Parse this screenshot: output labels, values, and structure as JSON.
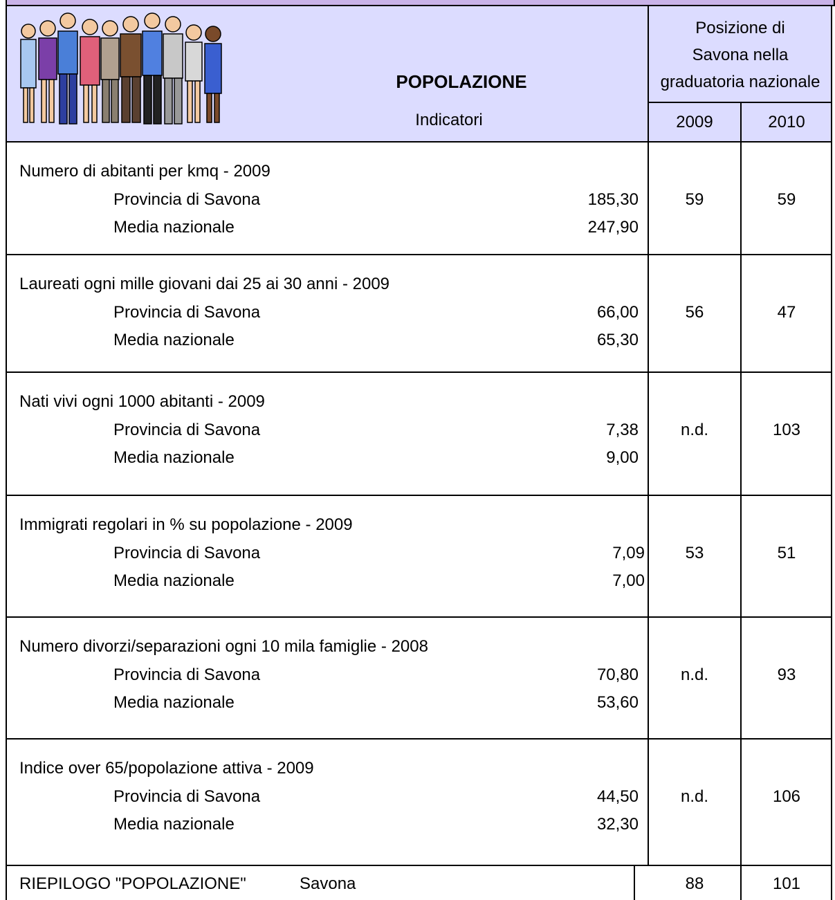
{
  "header": {
    "title": "POPOLAZIONE",
    "subtitle": "Indicatori",
    "rank_heading": [
      "Posizione di",
      "Savona nella",
      "graduatoria nazionale"
    ],
    "years": [
      "2009",
      "2010"
    ]
  },
  "indicators": [
    {
      "label": "Numero di abitanti per kmq - 2009",
      "rows": [
        {
          "name": "Provincia di Savona",
          "value": "185,30"
        },
        {
          "name": "Media nazionale",
          "value": "247,90"
        }
      ],
      "rank": [
        "59",
        "59"
      ]
    },
    {
      "label": "Laureati ogni mille giovani dai 25 ai 30 anni - 2009",
      "rows": [
        {
          "name": "Provincia di Savona",
          "value": "66,00"
        },
        {
          "name": "Media nazionale",
          "value": "65,30"
        }
      ],
      "rank": [
        "56",
        "47"
      ]
    },
    {
      "label": "Nati vivi ogni 1000 abitanti - 2009",
      "rows": [
        {
          "name": "Provincia di Savona",
          "value": "7,38"
        },
        {
          "name": "Media nazionale",
          "value": "9,00"
        }
      ],
      "rank": [
        "n.d.",
        "103"
      ]
    },
    {
      "label": "Immigrati regolari in % su popolazione - 2009",
      "rows": [
        {
          "name": "Provincia di Savona",
          "value": "7,09"
        },
        {
          "name": "Media nazionale",
          "value": "7,00"
        }
      ],
      "rank": [
        "53",
        "51"
      ]
    },
    {
      "label": "Numero divorzi/separazioni ogni 10 mila famiglie - 2008",
      "rows": [
        {
          "name": "Provincia di Savona",
          "value": "70,80"
        },
        {
          "name": "Media nazionale",
          "value": "53,60"
        }
      ],
      "rank": [
        "n.d.",
        "93"
      ]
    },
    {
      "label": "Indice over 65/popolazione attiva - 2009",
      "rows": [
        {
          "name": "Provincia di Savona",
          "value": "44,50"
        },
        {
          "name": "Media nazionale",
          "value": "32,30"
        }
      ],
      "rank": [
        "n.d.",
        "106"
      ]
    }
  ],
  "summary": {
    "label": "RIEPILOGO \"POPOLAZIONE\"",
    "place": "Savona",
    "rank": [
      "88",
      "101"
    ]
  }
}
